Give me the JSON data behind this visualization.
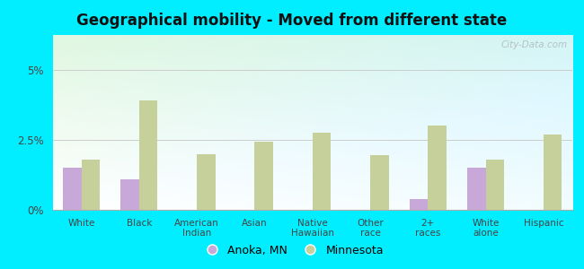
{
  "title": "Geographical mobility - Moved from different state",
  "categories": [
    "White",
    "Black",
    "American\nIndian",
    "Asian",
    "Native\nHawaiian",
    "Other\nrace",
    "2+\nraces",
    "White\nalone",
    "Hispanic"
  ],
  "anoka_values": [
    1.5,
    1.1,
    0.0,
    0.0,
    0.0,
    0.0,
    0.4,
    1.5,
    0.0
  ],
  "minnesota_values": [
    1.8,
    3.9,
    2.0,
    2.45,
    2.75,
    1.95,
    3.0,
    1.8,
    2.7
  ],
  "anoka_color": "#c8a8d8",
  "minnesota_color": "#c5d09a",
  "outer_bg": "#00eeff",
  "ylim": [
    0,
    6.25
  ],
  "yticks": [
    0,
    2.5,
    5.0
  ],
  "ytick_labels": [
    "0%",
    "2.5%",
    "5%"
  ],
  "bar_width": 0.32,
  "watermark": "City-Data.com",
  "legend_anoka": "Anoka, MN",
  "legend_mn": "Minnesota"
}
